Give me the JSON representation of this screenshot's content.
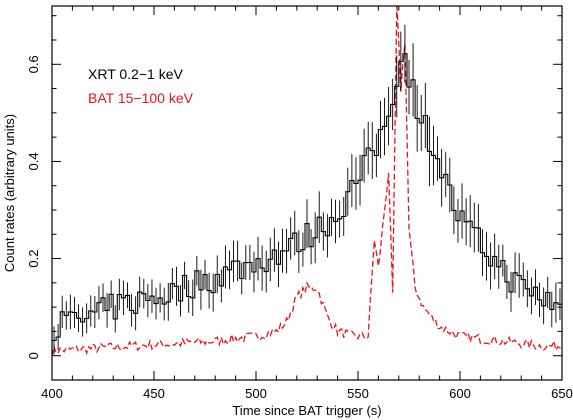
{
  "chart_data": {
    "type": "line",
    "xlabel": "Time since BAT trigger (s)",
    "ylabel": "Count rates (arbitrary units)",
    "xlim": [
      400,
      650
    ],
    "ylim": [
      -0.05,
      0.72
    ],
    "xticks": [
      400,
      450,
      500,
      550,
      600,
      650
    ],
    "yticks": [
      0,
      0.2,
      0.4,
      0.6
    ],
    "ytick_labels": [
      "0",
      "0.2",
      "0.4",
      "0.6"
    ],
    "legend_placement": "top-left",
    "series": [
      {
        "name": "XRT 0.2−1 keV",
        "color": "#000000",
        "style": "solid-steps-with-errorbars",
        "x": [
          400,
          410,
          420,
          430,
          440,
          450,
          460,
          470,
          480,
          490,
          500,
          510,
          520,
          530,
          540,
          545,
          550,
          555,
          560,
          565,
          570,
          572,
          575,
          580,
          585,
          590,
          595,
          600,
          610,
          620,
          630,
          640,
          650
        ],
        "y": [
          0.06,
          0.07,
          0.08,
          0.1,
          0.11,
          0.12,
          0.13,
          0.15,
          0.16,
          0.18,
          0.19,
          0.21,
          0.23,
          0.26,
          0.29,
          0.33,
          0.36,
          0.4,
          0.44,
          0.5,
          0.6,
          0.63,
          0.58,
          0.5,
          0.45,
          0.4,
          0.33,
          0.28,
          0.23,
          0.18,
          0.14,
          0.12,
          0.1
        ],
        "err": [
          0.03,
          0.03,
          0.03,
          0.03,
          0.03,
          0.03,
          0.035,
          0.035,
          0.035,
          0.04,
          0.04,
          0.04,
          0.04,
          0.045,
          0.045,
          0.05,
          0.05,
          0.05,
          0.055,
          0.06,
          0.07,
          0.07,
          0.07,
          0.06,
          0.06,
          0.055,
          0.05,
          0.05,
          0.045,
          0.04,
          0.04,
          0.035,
          0.035
        ]
      },
      {
        "name": "BAT 15−100 keV",
        "color": "#e8141e",
        "style": "dashed",
        "x": [
          400,
          420,
          440,
          460,
          480,
          500,
          510,
          515,
          520,
          525,
          530,
          535,
          540,
          548,
          555,
          558,
          560,
          562,
          565,
          567,
          569,
          571,
          573,
          575,
          578,
          582,
          590,
          600,
          620,
          640,
          650
        ],
        "y": [
          0.01,
          0.015,
          0.02,
          0.025,
          0.03,
          0.04,
          0.05,
          0.07,
          0.12,
          0.14,
          0.14,
          0.08,
          0.05,
          0.04,
          0.04,
          0.24,
          0.18,
          0.26,
          0.38,
          0.12,
          0.72,
          0.55,
          0.65,
          0.26,
          0.14,
          0.1,
          0.06,
          0.04,
          0.03,
          0.02,
          0.02
        ]
      }
    ]
  }
}
